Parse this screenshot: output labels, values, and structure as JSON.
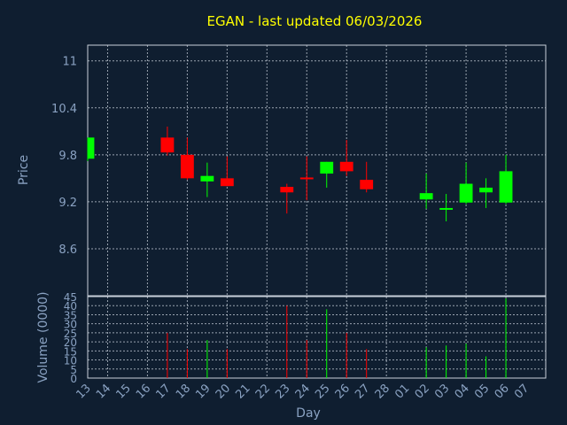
{
  "chart_data": {
    "type": "candlestick",
    "title": "EGAN - last updated 06/03/2026",
    "xlabel": "Day",
    "ylabel": "Price",
    "volume_label": "Volume (0000)",
    "colors": {
      "up": "#00ff00",
      "down": "#ff0000",
      "title": "#ffff00",
      "axis_text": "#8aa2c2",
      "background": "#0f1e30"
    },
    "price_ticks": [
      "11",
      "10.4",
      "9.8",
      "9.2",
      "8.6"
    ],
    "price_tick_values": [
      11,
      10.4,
      9.8,
      9.2,
      8.6
    ],
    "price_range": [
      8.0,
      11.2
    ],
    "volume_ticks": [
      "0",
      "5",
      "10",
      "15",
      "20",
      "25",
      "30",
      "35",
      "40",
      "45"
    ],
    "volume_tick_values": [
      0,
      5,
      10,
      15,
      20,
      25,
      30,
      35,
      40,
      45
    ],
    "volume_range": [
      0,
      45
    ],
    "x_tick_labels": [
      "13",
      "14",
      "15",
      "16",
      "17",
      "18",
      "19",
      "20",
      "21",
      "22",
      "23",
      "24",
      "25",
      "26",
      "27",
      "28",
      "01",
      "02",
      "03",
      "04",
      "05",
      "06",
      "07"
    ],
    "candles": [
      {
        "day": "13",
        "open": 9.75,
        "high": 10.02,
        "low": 9.72,
        "close": 10.02,
        "volume": 0
      },
      {
        "day": "17",
        "open": 10.02,
        "high": 10.16,
        "low": 9.79,
        "close": 9.83,
        "volume": 25
      },
      {
        "day": "18",
        "open": 9.8,
        "high": 10.02,
        "low": 9.48,
        "close": 9.5,
        "volume": 16
      },
      {
        "day": "19",
        "open": 9.46,
        "high": 9.7,
        "low": 9.26,
        "close": 9.53,
        "volume": 21
      },
      {
        "day": "20",
        "open": 9.5,
        "high": 9.78,
        "low": 9.4,
        "close": 9.4,
        "volume": 16
      },
      {
        "day": "23",
        "open": 9.39,
        "high": 9.43,
        "low": 9.05,
        "close": 9.32,
        "volume": 40
      },
      {
        "day": "24",
        "open": 9.51,
        "high": 9.78,
        "low": 9.22,
        "close": 9.49,
        "volume": 21
      },
      {
        "day": "25",
        "open": 9.56,
        "high": 9.71,
        "low": 9.38,
        "close": 9.71,
        "volume": 38
      },
      {
        "day": "26",
        "open": 9.71,
        "high": 9.99,
        "low": 9.53,
        "close": 9.59,
        "volume": 25
      },
      {
        "day": "27",
        "open": 9.48,
        "high": 9.71,
        "low": 9.32,
        "close": 9.36,
        "volume": 16
      },
      {
        "day": "02",
        "open": 9.23,
        "high": 9.56,
        "low": 9.11,
        "close": 9.31,
        "volume": 17
      },
      {
        "day": "03",
        "open": 9.1,
        "high": 9.3,
        "low": 8.95,
        "close": 9.12,
        "volume": 18
      },
      {
        "day": "04",
        "open": 9.19,
        "high": 9.7,
        "low": 9.17,
        "close": 9.43,
        "volume": 19
      },
      {
        "day": "05",
        "open": 9.32,
        "high": 9.5,
        "low": 9.12,
        "close": 9.38,
        "volume": 12
      },
      {
        "day": "06",
        "open": 9.19,
        "high": 9.8,
        "low": 9.17,
        "close": 9.59,
        "volume": 44
      }
    ]
  }
}
